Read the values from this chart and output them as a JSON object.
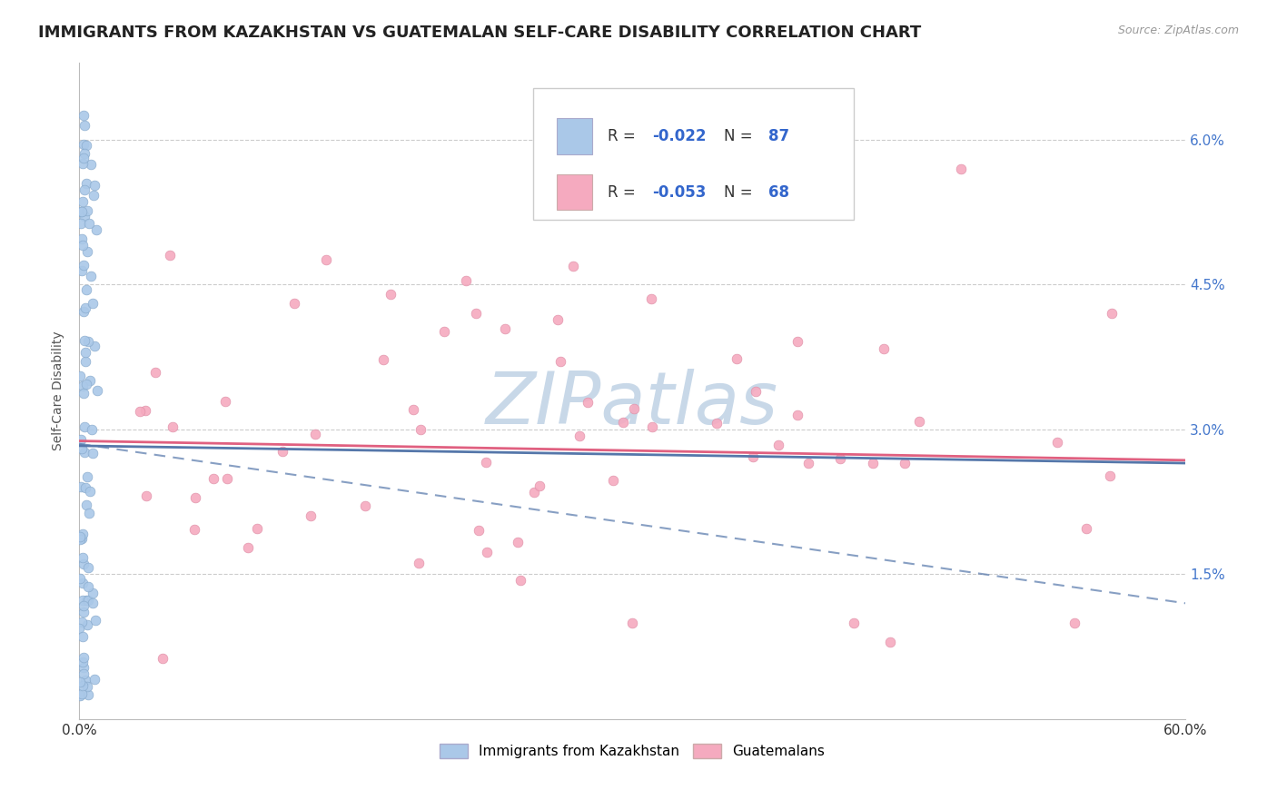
{
  "title": "IMMIGRANTS FROM KAZAKHSTAN VS GUATEMALAN SELF-CARE DISABILITY CORRELATION CHART",
  "source": "Source: ZipAtlas.com",
  "ylabel": "Self-Care Disability",
  "xlim": [
    0.0,
    0.6
  ],
  "ylim": [
    0.0,
    0.068
  ],
  "ytick_positions": [
    0.015,
    0.03,
    0.045,
    0.06
  ],
  "ytick_labels": [
    "1.5%",
    "3.0%",
    "4.5%",
    "6.0%"
  ],
  "xtick_positions": [
    0.0,
    0.1,
    0.2,
    0.3,
    0.4,
    0.5,
    0.6
  ],
  "xtick_labels": [
    "0.0%",
    "",
    "",
    "",
    "",
    "",
    "60.0%"
  ],
  "color_kazakhstan": "#aac8e8",
  "color_guatemalan": "#f5aabf",
  "color_kaz_edge": "#88aacc",
  "color_guat_edge": "#e090a8",
  "trendline_kaz_color": "#5577aa",
  "trendline_guat_color": "#e06080",
  "background_color": "#ffffff",
  "grid_color": "#cccccc",
  "watermark_color": "#c8d8e8",
  "title_fontsize": 13,
  "axis_label_fontsize": 10,
  "tick_fontsize": 11,
  "legend_fontsize": 12,
  "kaz_trendline_y0": 0.0283,
  "kaz_trendline_y1": 0.0265,
  "guat_trendline_y0": 0.0288,
  "guat_trendline_y1": 0.0268
}
